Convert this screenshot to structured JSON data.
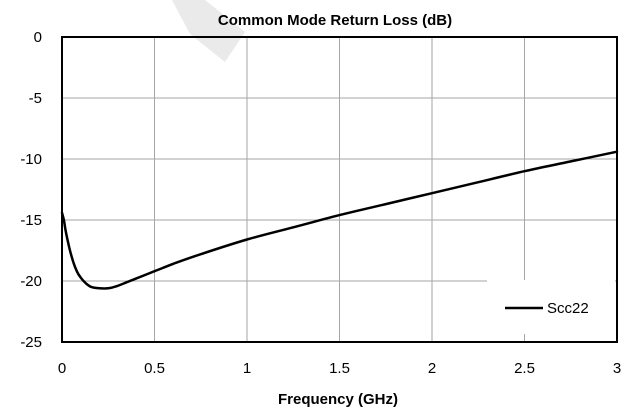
{
  "chart_data": {
    "type": "line",
    "title": "Common Mode Return Loss (dB)",
    "xlabel": "Frequency  (GHz)",
    "ylabel": "",
    "xlim": [
      0,
      3
    ],
    "ylim": [
      -25,
      0
    ],
    "x_ticks": [
      "0",
      "0.5",
      "1",
      "1.5",
      "2",
      "2.5",
      "3"
    ],
    "y_ticks": [
      "0",
      "-5",
      "-10",
      "-15",
      "-20",
      "-25"
    ],
    "grid": true,
    "legend_position": "bottom-right",
    "series": [
      {
        "name": "Scc22",
        "color": "#000000",
        "x": [
          0,
          0.01,
          0.02,
          0.04,
          0.06,
          0.08,
          0.1,
          0.13,
          0.16,
          0.2,
          0.25,
          0.3,
          0.35,
          0.4,
          0.5,
          0.6,
          0.75,
          1.0,
          1.25,
          1.5,
          1.75,
          2.0,
          2.25,
          2.5,
          2.75,
          3.0
        ],
        "y": [
          -14.4,
          -15.0,
          -15.9,
          -17.3,
          -18.4,
          -19.2,
          -19.7,
          -20.2,
          -20.5,
          -20.6,
          -20.6,
          -20.4,
          -20.1,
          -19.8,
          -19.2,
          -18.6,
          -17.8,
          -16.6,
          -15.6,
          -14.6,
          -13.7,
          -12.8,
          -11.9,
          -11.0,
          -10.2,
          -9.4
        ]
      }
    ]
  }
}
